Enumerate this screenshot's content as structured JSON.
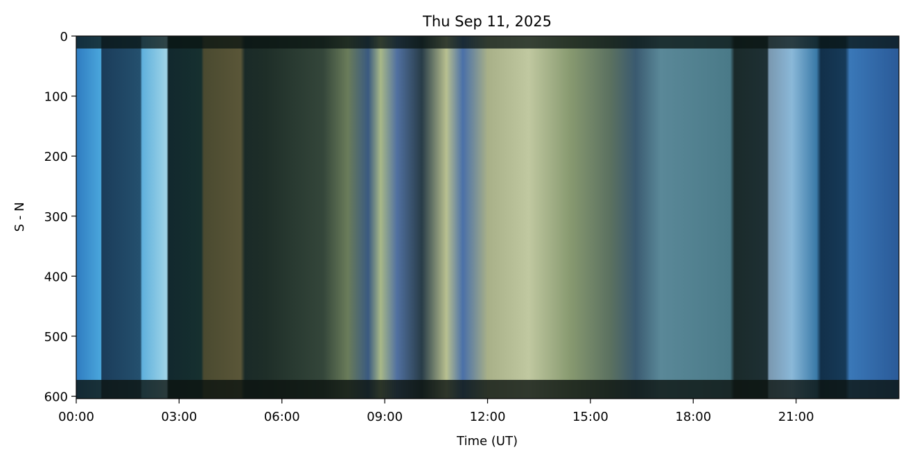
{
  "chart_data": {
    "type": "image",
    "title": "Thu Sep 11, 2025",
    "xlabel": "Time (UT)",
    "ylabel": "S - N",
    "xlim": [
      0,
      24
    ],
    "xticks": [
      {
        "value": 0,
        "label": "00:00"
      },
      {
        "value": 3,
        "label": "03:00"
      },
      {
        "value": 6,
        "label": "06:00"
      },
      {
        "value": 9,
        "label": "09:00"
      },
      {
        "value": 12,
        "label": "12:00"
      },
      {
        "value": 15,
        "label": "15:00"
      },
      {
        "value": 18,
        "label": "18:00"
      },
      {
        "value": 21,
        "label": "21:00"
      }
    ],
    "ylim": [
      604,
      0
    ],
    "yticks": [
      0,
      100,
      200,
      300,
      400,
      500,
      600
    ]
  }
}
